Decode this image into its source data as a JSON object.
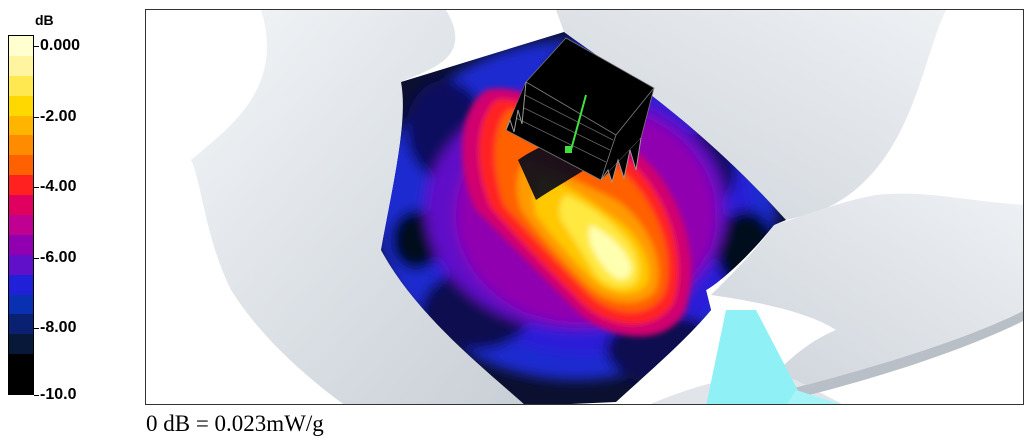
{
  "legend": {
    "unit": "dB",
    "ticks": [
      "0.000",
      "-2.00",
      "-4.00",
      "-6.00",
      "-8.00",
      "-10.0"
    ],
    "colors": [
      "#ffffd0",
      "#fff4a0",
      "#ffe850",
      "#ffd800",
      "#ffb400",
      "#ff8c00",
      "#ff6000",
      "#ff2020",
      "#e00060",
      "#c00090",
      "#9000b0",
      "#6010c8",
      "#2020d8",
      "#0830b0",
      "#0a2070",
      "#081838",
      "#000000",
      "#000000"
    ]
  },
  "caption": "0 dB = 0.023mW/g"
}
